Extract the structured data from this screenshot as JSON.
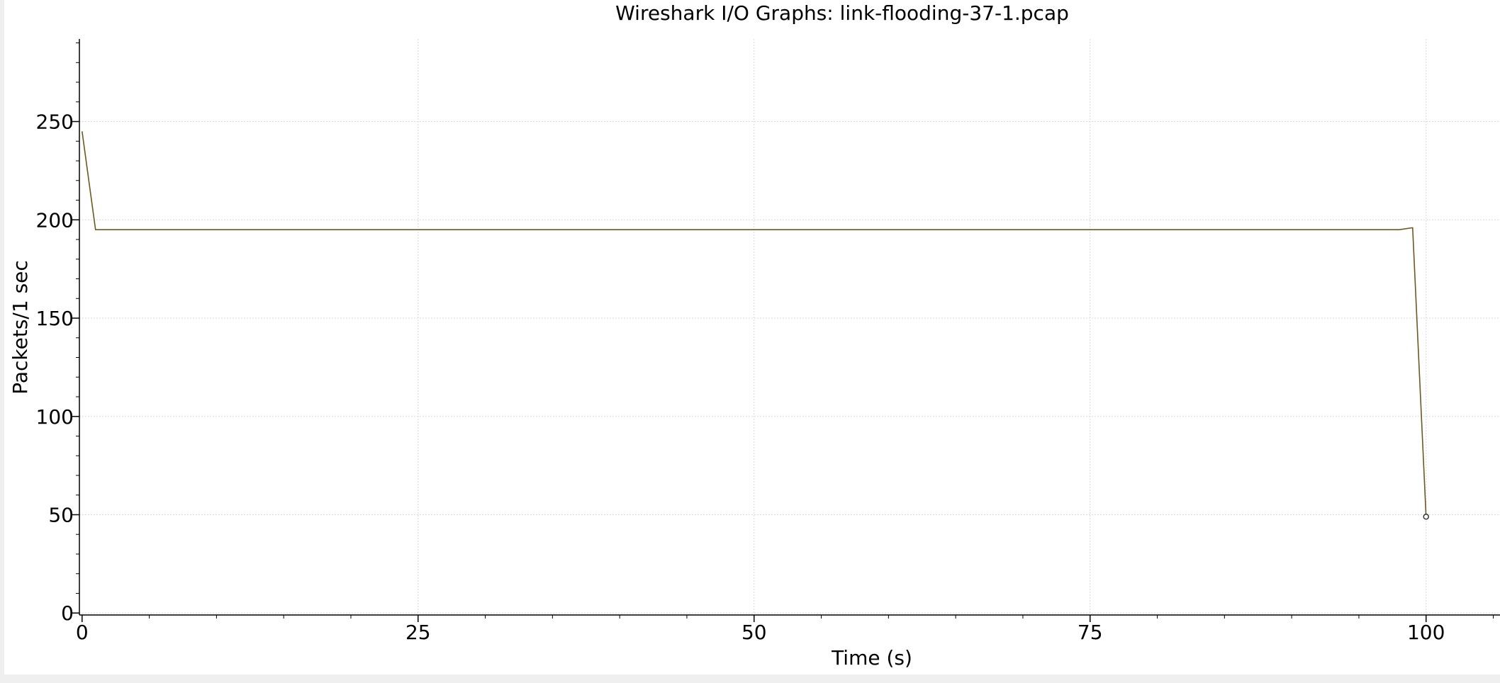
{
  "chart_data": {
    "type": "line",
    "title": "Wireshark I/O Graphs: link-flooding-37-1.pcap",
    "xlabel": "Time (s)",
    "ylabel": "Packets/1 sec",
    "xlim": [
      -0.2,
      105.5
    ],
    "ylim": [
      -1,
      292
    ],
    "xticks": [
      0,
      25,
      50,
      75,
      100
    ],
    "yticks": [
      0,
      50,
      100,
      150,
      200,
      250
    ],
    "grid": true,
    "legend": "none",
    "colors": {
      "line": "#6b5a1e",
      "grid": "#d9d9d9",
      "axis": "#000000"
    },
    "series": [
      {
        "x": [
          0,
          1,
          2,
          3,
          4,
          5,
          6,
          7,
          8,
          9,
          10,
          11,
          12,
          13,
          14,
          15,
          16,
          17,
          18,
          19,
          20,
          21,
          22,
          23,
          24,
          25,
          26,
          27,
          28,
          29,
          30,
          31,
          32,
          33,
          34,
          35,
          36,
          37,
          38,
          39,
          40,
          41,
          42,
          43,
          44,
          45,
          46,
          47,
          48,
          49,
          50,
          51,
          52,
          53,
          54,
          55,
          56,
          57,
          58,
          59,
          60,
          61,
          62,
          63,
          64,
          65,
          66,
          67,
          68,
          69,
          70,
          71,
          72,
          73,
          74,
          75,
          76,
          77,
          78,
          79,
          80,
          81,
          82,
          83,
          84,
          85,
          86,
          87,
          88,
          89,
          90,
          91,
          92,
          93,
          94,
          95,
          96,
          97,
          98,
          99,
          100
        ],
        "y": [
          245,
          195,
          195,
          195,
          195,
          195,
          195,
          195,
          195,
          195,
          195,
          195,
          195,
          195,
          195,
          195,
          195,
          195,
          195,
          195,
          195,
          195,
          195,
          195,
          195,
          195,
          195,
          195,
          195,
          195,
          195,
          195,
          195,
          195,
          195,
          195,
          195,
          195,
          195,
          195,
          195,
          195,
          195,
          195,
          195,
          195,
          195,
          195,
          195,
          195,
          195,
          195,
          195,
          195,
          195,
          195,
          195,
          195,
          195,
          195,
          195,
          195,
          195,
          195,
          195,
          195,
          195,
          195,
          195,
          195,
          195,
          195,
          195,
          195,
          195,
          195,
          195,
          195,
          195,
          195,
          195,
          195,
          195,
          195,
          195,
          195,
          195,
          195,
          195,
          195,
          195,
          195,
          195,
          195,
          195,
          195,
          195,
          195,
          195,
          196,
          49
        ]
      }
    ]
  }
}
